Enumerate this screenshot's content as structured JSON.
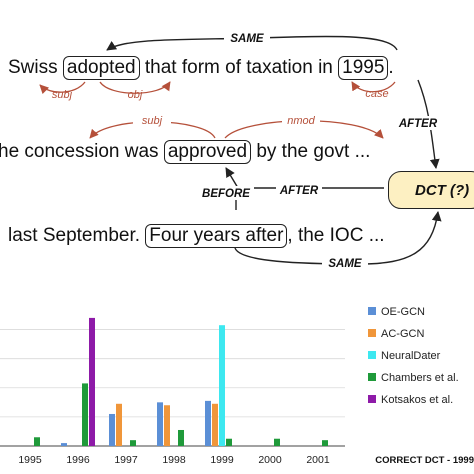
{
  "sentences": {
    "s1": {
      "pre": "Swiss ",
      "box1": "adopted",
      "mid": " that form of taxation in ",
      "box2": "1995",
      "post": "."
    },
    "s2": {
      "pre": "he concession was ",
      "box1": "approved",
      "post": " by the govt ..."
    },
    "s3": {
      "pre": "last September. ",
      "box1": "Four years after",
      "post": ", the IOC ..."
    }
  },
  "relations": {
    "same_top": "SAME",
    "subj1": "subj",
    "obj1": "obj",
    "case": "case",
    "after1": "AFTER",
    "subj2": "subj",
    "nmod": "nmod",
    "before": "BEFORE",
    "after2": "AFTER",
    "same_bottom": "SAME"
  },
  "dct_label": "DCT (?)",
  "colors": {
    "oe_gcn": "#5b8fd6",
    "ac_gcn": "#f0963a",
    "neuraldater": "#3de8f0",
    "chambers": "#1f9a3a",
    "kotsakos": "#8e1aa8",
    "dep_red": "#b5503a"
  },
  "chart_data": {
    "type": "bar",
    "categories": [
      "1995",
      "1996",
      "1997",
      "1998",
      "1999",
      "2000",
      "2001"
    ],
    "series": [
      {
        "name": "OE-GCN",
        "values": [
          0,
          0.02,
          0.22,
          0.3,
          0.31,
          0,
          0
        ]
      },
      {
        "name": "AC-GCN",
        "values": [
          0,
          0,
          0.29,
          0.28,
          0.29,
          0,
          0
        ]
      },
      {
        "name": "NeuralDater",
        "values": [
          0,
          0,
          0,
          0,
          0.83,
          0,
          0
        ]
      },
      {
        "name": "Chambers et al.",
        "values": [
          0.06,
          0.43,
          0.04,
          0.11,
          0.05,
          0.05,
          0.04
        ]
      },
      {
        "name": "Kotsakos et al.",
        "values": [
          0,
          0.88,
          0,
          0,
          0,
          0,
          0
        ]
      }
    ],
    "ylim": [
      0,
      0.9
    ],
    "grid": true,
    "legend": "right",
    "annotation": "CORRECT DCT - 1999"
  }
}
